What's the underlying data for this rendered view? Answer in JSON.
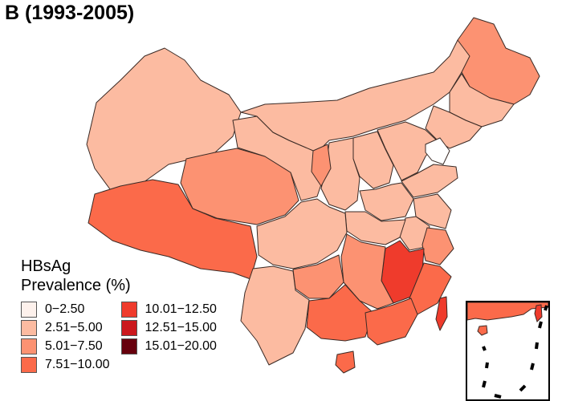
{
  "title": "B (1993-2005)",
  "legend": {
    "title_line1": "HBsAg",
    "title_line2": "Prevalence (%)",
    "items": [
      {
        "label": "0−2.50",
        "color": "#fdf1ec"
      },
      {
        "label": "2.51−5.00",
        "color": "#fcbba1"
      },
      {
        "label": "5.01−7.50",
        "color": "#fc9272"
      },
      {
        "label": "7.51−10.00",
        "color": "#fb6a4a"
      },
      {
        "label": "10.01−12.50",
        "color": "#ef3b2c"
      },
      {
        "label": "12.51−15.00",
        "color": "#cb181d"
      },
      {
        "label": "15.01−20.00",
        "color": "#67000d"
      }
    ]
  },
  "colors": {
    "border": "#3a2a25",
    "background": "#ffffff"
  }
}
